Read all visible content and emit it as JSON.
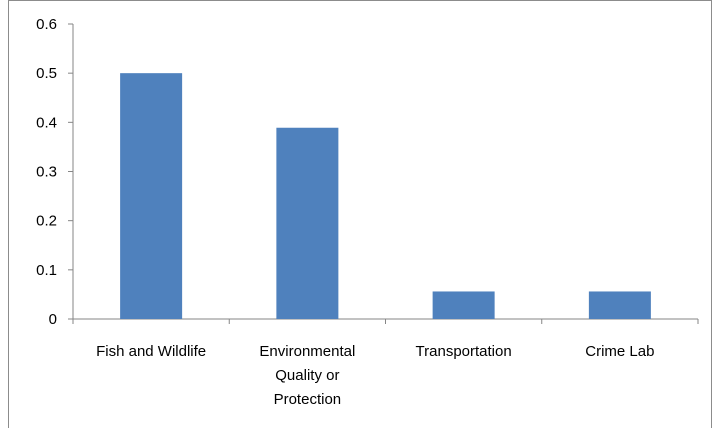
{
  "chart_data": {
    "type": "bar",
    "categories": [
      [
        "Fish and Wildlife"
      ],
      [
        "Environmental",
        "Quality or",
        "Protection"
      ],
      [
        "Transportation"
      ],
      [
        "Crime Lab"
      ]
    ],
    "values": [
      0.5,
      0.389,
      0.056,
      0.056
    ],
    "ylim": [
      0,
      0.6
    ],
    "yticks": [
      "0",
      "0.1",
      "0.2",
      "0.3",
      "0.4",
      "0.5",
      "0.6"
    ],
    "grid": false,
    "legend": "none",
    "bar_color": "#4F81BD",
    "axis_color": "#868686"
  }
}
